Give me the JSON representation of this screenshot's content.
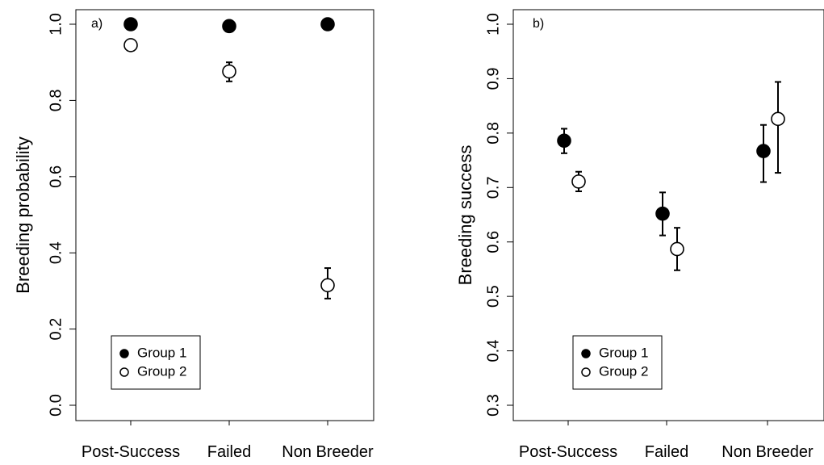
{
  "chart_data": [
    {
      "type": "scatter",
      "panel_label": "a)",
      "ylabel": "Breeding probability",
      "categories": [
        "Post-Success",
        "Failed",
        "Non Breeder"
      ],
      "ylim": [
        0.0,
        1.0
      ],
      "yticks": [
        "0.0",
        "0.2",
        "0.4",
        "0.6",
        "0.8",
        "1.0"
      ],
      "legend_position": "bottom-left",
      "series": [
        {
          "name": "Group 1",
          "marker": "filled-circle",
          "values": [
            1.0,
            0.995,
            1.0
          ],
          "lower": [
            null,
            null,
            null
          ],
          "upper": [
            null,
            null,
            null
          ]
        },
        {
          "name": "Group 2",
          "marker": "open-circle",
          "values": [
            0.945,
            0.876,
            0.315
          ],
          "lower": [
            null,
            0.85,
            0.28
          ],
          "upper": [
            null,
            0.9,
            0.36
          ]
        }
      ]
    },
    {
      "type": "scatter",
      "panel_label": "b)",
      "ylabel": "Breeding success",
      "categories": [
        "Post-Success",
        "Failed",
        "Non Breeder"
      ],
      "ylim": [
        0.3,
        1.0
      ],
      "yticks": [
        "0.3",
        "0.4",
        "0.5",
        "0.6",
        "0.7",
        "0.8",
        "0.9",
        "1.0"
      ],
      "legend_position": "bottom-left",
      "series": [
        {
          "name": "Group 1",
          "marker": "filled-circle",
          "values": [
            0.786,
            0.652,
            0.767
          ],
          "lower": [
            0.763,
            0.612,
            0.71
          ],
          "upper": [
            0.808,
            0.691,
            0.815
          ]
        },
        {
          "name": "Group 2",
          "marker": "open-circle",
          "values": [
            0.711,
            0.587,
            0.826
          ],
          "lower": [
            0.693,
            0.548,
            0.727
          ],
          "upper": [
            0.729,
            0.626,
            0.894
          ]
        }
      ]
    }
  ]
}
